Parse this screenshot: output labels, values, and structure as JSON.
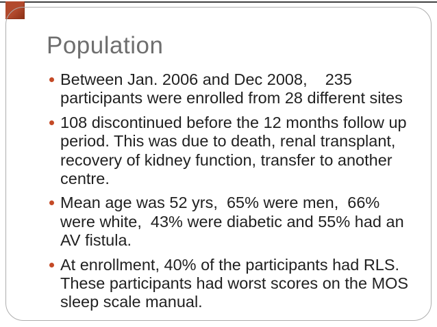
{
  "theme": {
    "background": "#ffffff",
    "frame-border": "#adadad",
    "title-color": "#6e6e6e",
    "body-color": "#212121",
    "bullet-color": "#c44a26",
    "accent-red": "#b24a2d",
    "accent-red-dark": "#8c3116",
    "rule-color": "#3f3f3f"
  },
  "slide": {
    "title": "Population",
    "bullets": [
      {
        "lines": [
          "Between Jan. 2006 and Dec 2008,    235",
          "participants were enrolled from 28 different sites"
        ]
      },
      {
        "lines": [
          "108 discontinued before the 12 months follow up",
          "period. This was due to death, renal transplant,",
          "recovery of kidney function, transfer to another",
          "centre."
        ]
      },
      {
        "lines": [
          "Mean age was 52 yrs,  65% were men,  66%",
          "were white,  43% were diabetic and 55% had an",
          "AV fistula."
        ]
      },
      {
        "lines": [
          "At enrollment, 40% of the participants had RLS.",
          "These participants had worst scores on the MOS",
          "sleep scale manual."
        ]
      }
    ]
  }
}
